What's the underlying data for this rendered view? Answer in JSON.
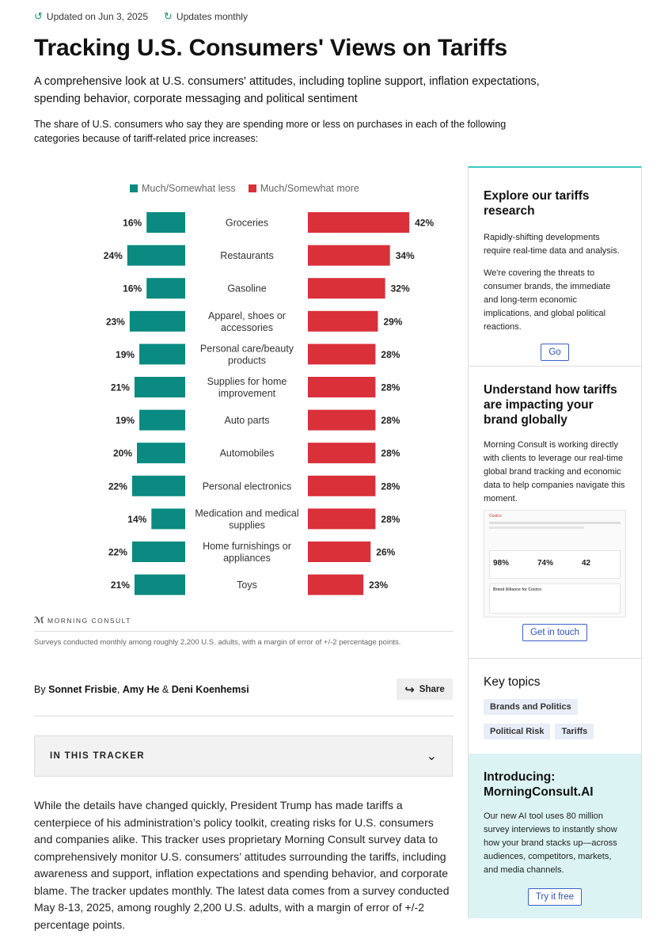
{
  "meta": {
    "updated": "Updated on Jun 3, 2025",
    "frequency": "Updates monthly"
  },
  "header": {
    "title": "Tracking U.S. Consumers' Views on Tariffs",
    "subtitle": "A comprehensive look at U.S. consumers' attitudes, including topline support, inflation expectations, spending behavior, corporate messaging and political sentiment",
    "intro": "The share of U.S. consumers who say they are spending more or less on purchases in each of the following categories because of tariff-related price increases:"
  },
  "chart_data": {
    "type": "bar",
    "title": "The share of U.S. consumers who say they are spending more or less on purchases in each of the following categories because of tariff-related price increases:",
    "categories": [
      "Groceries",
      "Restaurants",
      "Gasoline",
      "Apparel, shoes or accessories",
      "Personal care/beauty products",
      "Supplies for home improvement",
      "Auto parts",
      "Automobiles",
      "Personal electronics",
      "Medication and medical supplies",
      "Home furnishings or appliances",
      "Toys"
    ],
    "category_lines": [
      [
        "Groceries"
      ],
      [
        "Restaurants"
      ],
      [
        "Gasoline"
      ],
      [
        "Apparel, shoes or",
        "accessories"
      ],
      [
        "Personal care/beauty",
        "products"
      ],
      [
        "Supplies for home",
        "improvement"
      ],
      [
        "Auto parts"
      ],
      [
        "Automobiles"
      ],
      [
        "Personal electronics"
      ],
      [
        "Medication and medical",
        "supplies"
      ],
      [
        "Home furnishings or",
        "appliances"
      ],
      [
        "Toys"
      ]
    ],
    "series": [
      {
        "name": "Much/Somewhat less",
        "color": "#0a8a80",
        "values": [
          16,
          24,
          16,
          23,
          19,
          21,
          19,
          20,
          22,
          14,
          22,
          21
        ]
      },
      {
        "name": "Much/Somewhat more",
        "color": "#d9303a",
        "values": [
          42,
          34,
          32,
          29,
          28,
          28,
          28,
          28,
          28,
          28,
          26,
          23
        ]
      }
    ],
    "unit": "%",
    "xlim": [
      0,
      42
    ],
    "legend": "top-center"
  },
  "chart_footer": {
    "brand": "MORNING CONSULT",
    "note": "Surveys conducted monthly among roughly 2,200 U.S. adults, with a margin of error of +/-2 percentage points."
  },
  "byline": {
    "prefix": "By",
    "author1": "Sonnet Frisbie",
    "sep": ",",
    "author2": "Amy He",
    "amp": "&",
    "author3": "Deni Koenhemsi"
  },
  "share_label": "Share",
  "tracker_label": "IN THIS TRACKER",
  "body_text": "While the details have changed quickly, President Trump has made tariffs a centerpiece of his administration’s policy toolkit, creating risks for U.S. consumers and companies alike. This tracker uses proprietary Morning Consult survey data to comprehensively monitor U.S. consumers’ attitudes surrounding the tariffs, including awareness and support, inflation expectations and spending behavior, and corporate blame. The tracker updates monthly. The latest data comes from a survey conducted May 8-13, 2025, among roughly 2,200 U.S. adults, with a margin of error of +/-2 percentage points.",
  "sidebar": {
    "explore": {
      "title": "Explore our tariffs research",
      "p1": "Rapidly-shifting developments require real-time data and analysis.",
      "p2": "We're covering the threats to consumer brands, the immediate and long-term economic implications, and global political reactions.",
      "button": "Go"
    },
    "understand": {
      "title": "Understand how tariffs are impacting your brand globally",
      "p1": "Morning Consult is working directly with clients to leverage our real-time global brand tracking and economic data to help companies navigate this moment.",
      "button": "Get in touch",
      "preview": {
        "brand": "Costco",
        "m1": "98%",
        "m2": "74%",
        "m3": "42",
        "card": "Brand Alliance for Costco"
      }
    },
    "topics": {
      "title": "Key topics",
      "tags": [
        "Brands and Politics",
        "Political Risk",
        "Tariffs"
      ]
    },
    "ai": {
      "title": "Introducing: MorningConsult.AI",
      "p1": "Our new AI tool uses 80 million survey interviews to instantly show how your brand stacks up—across audiences, competitors, markets, and media channels.",
      "button": "Try it free"
    }
  },
  "colors": {
    "teal": "#0a8a80",
    "red": "#d9303a",
    "accent": "#3cc7c4",
    "link": "#2c4fb8",
    "meta_icon": "#1a9b6a"
  }
}
